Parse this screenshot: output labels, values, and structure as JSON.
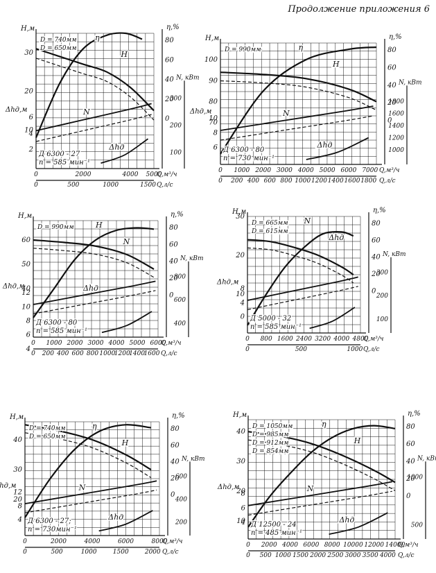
{
  "header": "Продолжение приложения 6",
  "chart_data": [
    {
      "type": "line",
      "box": 0,
      "annotation": [
        "Д 6300 - 27",
        "n = 585 мин⁻¹"
      ],
      "q_label": "Q,м³/ч",
      "qs_label": "Q,л/с",
      "q_ticks": [
        "0",
        "2000",
        "4000",
        "5000"
      ],
      "q_tick_vals": [
        0,
        2000,
        4000,
        5000
      ],
      "q_range": [
        0,
        5000
      ],
      "qs_ticks": [
        "0",
        "500",
        "1000",
        "1500"
      ],
      "left_label": "Н,м",
      "left_ticks": [
        "30",
        "20",
        "10"
      ],
      "left_tick_vals": [
        30,
        20,
        10
      ],
      "left_range": [
        0,
        35
      ],
      "dh_label": "Δhд,м",
      "dh_ticks": [
        "6",
        "4",
        "2"
      ],
      "eta_label": "η,%",
      "eta_ticks": [
        "80",
        "60",
        "40",
        "20",
        "0"
      ],
      "n_label": "N, кВт",
      "n_ticks": [
        "300",
        "200",
        "100"
      ],
      "labels": [
        "D = 740мм",
        "D = 650мм",
        "η",
        "H",
        "N",
        "Δhд"
      ],
      "series": [
        {
          "name": "H",
          "curve": "H",
          "x": [
            0,
            1000,
            2000,
            3000,
            4000,
            5000
          ],
          "y": [
            31,
            29,
            27,
            25,
            21,
            15
          ]
        },
        {
          "name": "η",
          "curve": "eta",
          "x": [
            0,
            1000,
            2000,
            3000,
            3800,
            4500
          ],
          "y": [
            8,
            22,
            31,
            34.5,
            35,
            33.5
          ]
        }
      ]
    },
    {
      "type": "line",
      "box": 1,
      "annotation": [
        "Д 6300 - 80",
        "n = 730 мин⁻¹"
      ],
      "q_label": "Q,м³/ч",
      "qs_label": "Q,л/с",
      "q_ticks": [
        "0",
        "1000",
        "2000",
        "3000",
        "4000",
        "5000",
        "6000",
        "7000"
      ],
      "q_tick_vals": [
        0,
        1000,
        2000,
        3000,
        4000,
        5000,
        6000,
        7000
      ],
      "q_range": [
        0,
        7300
      ],
      "qs_ticks": [
        "0",
        "200",
        "400",
        "600",
        "800",
        "1000",
        "1200",
        "1400",
        "1600",
        "1800"
      ],
      "left_label": "Н,м",
      "left_ticks": [
        "100",
        "90",
        "80",
        "70"
      ],
      "left_tick_vals": [
        100,
        90,
        80,
        70
      ],
      "left_range": [
        50,
        108
      ],
      "dh_label": "Δhд,м",
      "dh_ticks": [
        "10",
        "8",
        "6"
      ],
      "eta_label": "η,%",
      "eta_ticks": [
        "80",
        "60",
        "40",
        "20",
        "0"
      ],
      "n_label": "N, кВт",
      "n_ticks": [
        "1800",
        "1600",
        "1400",
        "1200",
        "1000"
      ],
      "labels": [
        "D = 990мм",
        "η",
        "H",
        "N",
        "Δhд"
      ],
      "series": [
        {
          "name": "H",
          "curve": "H",
          "x": [
            0,
            2000,
            4000,
            6000,
            7300
          ],
          "y": [
            94,
            93,
            91,
            86,
            80
          ]
        },
        {
          "name": "η",
          "curve": "eta",
          "x": [
            0,
            2000,
            4000,
            6000,
            7300
          ],
          "y": [
            55,
            85,
            100,
            105,
            106
          ]
        }
      ]
    },
    {
      "type": "line",
      "box": 2,
      "annotation": [
        "Д 6300 - 80",
        "n = 585 мин⁻¹"
      ],
      "q_label": "Q,м³/ч",
      "qs_label": "Q,л/с",
      "q_ticks": [
        "0",
        "1000",
        "2000",
        "3000",
        "4000",
        "5000",
        "6000"
      ],
      "q_tick_vals": [
        0,
        1000,
        2000,
        3000,
        4000,
        5000,
        6000
      ],
      "q_range": [
        0,
        6000
      ],
      "qs_ticks": [
        "0",
        "200",
        "400",
        "600",
        "800",
        "1000",
        "1200",
        "1400",
        "1600"
      ],
      "left_label": "Н,м",
      "left_ticks": [
        "60",
        "50",
        "40"
      ],
      "left_tick_vals": [
        60,
        50,
        40
      ],
      "left_range": [
        20,
        68
      ],
      "dh_label": "Δhд,м",
      "dh_ticks": [
        "12",
        "10",
        "8",
        "6",
        "4"
      ],
      "eta_label": "η,%",
      "eta_ticks": [
        "80",
        "60",
        "40",
        "20",
        "0"
      ],
      "n_label": "N, кВт",
      "n_ticks": [
        "800",
        "600",
        "400"
      ],
      "labels": [
        "D = 990мм",
        "H",
        "N",
        "Δhд"
      ],
      "series": [
        {
          "name": "H",
          "curve": "H",
          "x": [
            0,
            1500,
            3000,
            4500,
            5800
          ],
          "y": [
            60,
            59,
            57.5,
            54,
            48
          ]
        },
        {
          "name": "η",
          "curve": "eta",
          "x": [
            0,
            1000,
            2000,
            3000,
            4000,
            5000,
            5800
          ],
          "y": [
            28,
            40,
            52,
            60,
            64,
            65,
            64.5
          ]
        }
      ]
    },
    {
      "type": "line",
      "box": 3,
      "annotation": [
        "Д 5000 - 32",
        "n = 585 мин⁻¹"
      ],
      "q_label": "Q,м³/ч",
      "qs_label": "Q,л/с",
      "q_ticks": [
        "0",
        "800",
        "1600",
        "2400",
        "3200",
        "4000",
        "4800"
      ],
      "q_tick_vals": [
        0,
        800,
        1600,
        2400,
        3200,
        4000,
        4800
      ],
      "q_range": [
        0,
        4800
      ],
      "qs_ticks": [
        "0",
        "500",
        "1000"
      ],
      "left_label": "Н,м",
      "left_ticks": [
        "30",
        "20",
        "10"
      ],
      "left_tick_vals": [
        30,
        20,
        10
      ],
      "left_range": [
        0,
        30
      ],
      "dh_label": "Δhд,м",
      "dh_ticks": [
        "8",
        "4",
        "0"
      ],
      "eta_label": "η,%",
      "eta_ticks": [
        "80",
        "60",
        "40",
        "20",
        "0"
      ],
      "n_label": "N, кВт",
      "n_ticks": [
        "300",
        "200",
        "100"
      ],
      "labels": [
        "D = 665мм",
        "D = 615мм",
        "N",
        "Δhд"
      ],
      "series": [
        {
          "name": "H",
          "curve": "H",
          "x": [
            0,
            1000,
            2000,
            3000,
            4000,
            4500
          ],
          "y": [
            24,
            23.5,
            22,
            20,
            17,
            15
          ]
        },
        {
          "name": "η",
          "curve": "eta",
          "x": [
            0,
            800,
            1600,
            2400,
            3200,
            4000,
            4500
          ],
          "y": [
            2,
            10,
            17,
            22,
            25.5,
            26,
            25
          ]
        }
      ]
    },
    {
      "type": "line",
      "box": 4,
      "annotation": [
        "Д 6300 - 27;",
        "n = 730мин⁻¹"
      ],
      "q_label": "Q,м³/ч",
      "qs_label": "Q,л/с",
      "q_ticks": [
        "0",
        "2000",
        "4000",
        "6000",
        "8000"
      ],
      "q_tick_vals": [
        0,
        2000,
        4000,
        6000,
        8000
      ],
      "q_range": [
        0,
        8000
      ],
      "qs_ticks": [
        "0",
        "500",
        "1000",
        "1500",
        "2000"
      ],
      "left_label": "Н,м",
      "left_ticks": [
        "40",
        "30",
        "20"
      ],
      "left_tick_vals": [
        40,
        30,
        20
      ],
      "left_range": [
        8,
        46
      ],
      "dh_label": "Δhд,м",
      "dh_ticks": [
        "12",
        "8",
        "4"
      ],
      "eta_label": "η,%",
      "eta_ticks": [
        "80",
        "60",
        "40",
        "20",
        "0"
      ],
      "n_label": "N, кВт",
      "n_ticks": [
        "600",
        "400",
        "200"
      ],
      "labels": [
        "D = 740мм",
        "D = 650мм",
        "η",
        "H",
        "N",
        "Δhд"
      ],
      "series": [
        {
          "name": "H",
          "curve": "H",
          "x": [
            0,
            2000,
            4000,
            6000,
            7500
          ],
          "y": [
            45,
            43,
            40,
            35,
            30
          ]
        },
        {
          "name": "η",
          "curve": "eta",
          "x": [
            0,
            1500,
            3000,
            4500,
            6000,
            7500
          ],
          "y": [
            14,
            27,
            37,
            43,
            45,
            44
          ]
        }
      ]
    },
    {
      "type": "line",
      "box": 5,
      "annotation": [
        "Д 12500 - 24",
        "n = 485 мин⁻¹"
      ],
      "q_label": "Q,м³/ч",
      "qs_label": "Q,л/с",
      "q_ticks": [
        "0",
        "2000",
        "4000",
        "6000",
        "8000",
        "10000",
        "12000",
        "14000"
      ],
      "q_tick_vals": [
        0,
        2000,
        4000,
        6000,
        8000,
        10000,
        12000,
        14000
      ],
      "q_range": [
        0,
        14000
      ],
      "qs_ticks": [
        "0",
        "500",
        "1000",
        "1500",
        "2000",
        "2500",
        "3000",
        "3500",
        "4000"
      ],
      "left_label": "Н,м",
      "left_ticks": [
        "40",
        "30",
        "20",
        "10"
      ],
      "left_tick_vals": [
        40,
        30,
        20,
        10
      ],
      "left_range": [
        4,
        44
      ],
      "dh_label": "Δhд,м",
      "dh_ticks": [
        "8",
        "6",
        "4"
      ],
      "eta_label": "η,%",
      "eta_ticks": [
        "80",
        "60",
        "40",
        "20",
        "0"
      ],
      "n_label": "N, кВт",
      "n_ticks": [
        "1000",
        "500"
      ],
      "labels": [
        "D = 1050мм",
        "D = 985мм",
        "D = 912мм",
        "D = 854мм",
        "η",
        "H",
        "N",
        "Δhд"
      ],
      "series": [
        {
          "name": "H",
          "curve": "H",
          "x": [
            0,
            3000,
            6000,
            9000,
            12000,
            14000
          ],
          "y": [
            40,
            38.5,
            36,
            32,
            27,
            23
          ]
        },
        {
          "name": "η",
          "curve": "eta",
          "x": [
            0,
            2000,
            4000,
            6000,
            8000,
            10000,
            12000,
            14000
          ],
          "y": [
            8,
            18,
            26,
            33,
            38,
            41,
            42,
            41
          ]
        }
      ]
    }
  ]
}
